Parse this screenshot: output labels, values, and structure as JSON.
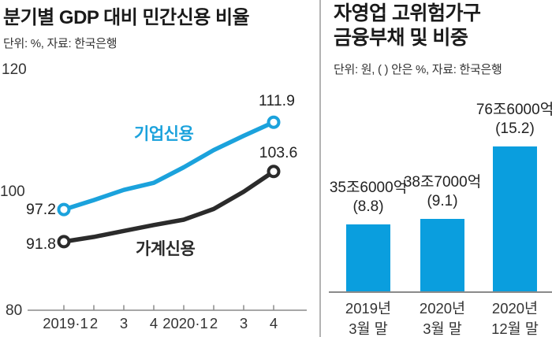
{
  "left_chart": {
    "title": "분기별 GDP 대비 민간신용 비율",
    "subtitle": "단위: %, 자료: 한국은행"
  },
  "right_chart": {
    "title_line1": "자영업 고위험가구",
    "title_line2": "금융부채 및 비중",
    "subtitle": "단위: 원, ( ) 안은 %, 자료: 한국은행"
  },
  "chart_data": [
    {
      "type": "line",
      "title": "분기별 GDP 대비 민간신용 비율",
      "unit": "%",
      "source": "한국은행",
      "x": [
        "2019·1",
        "2",
        "3",
        "4",
        "2020·1",
        "2",
        "3",
        "4"
      ],
      "y_ticks": [
        80,
        100,
        120
      ],
      "ylim": [
        80,
        120
      ],
      "grid": false,
      "labeled_points": "first and last of each series",
      "series": [
        {
          "name": "기업신용",
          "color": "#1ba2dc",
          "values": [
            97.2,
            98.8,
            100.5,
            101.7,
            104.3,
            107.2,
            109.6,
            111.9
          ],
          "start_label": "97.2",
          "end_label": "111.9"
        },
        {
          "name": "가계신용",
          "color": "#2b2b2b",
          "values": [
            91.8,
            92.6,
            93.6,
            94.6,
            95.5,
            97.3,
            100.2,
            103.6
          ],
          "start_label": "91.8",
          "end_label": "103.6"
        }
      ]
    },
    {
      "type": "bar",
      "title": "자영업 고위험가구 금융부채 및 비중",
      "unit": "원, ( ) 안은 %",
      "source": "한국은행",
      "bar_color": "#0a9ede",
      "categories_line1": [
        "2019년",
        "2020년",
        "2020년"
      ],
      "categories_line2": [
        "3월 말",
        "3월 말",
        "12월 말"
      ],
      "values_trillion_won": [
        35.6,
        38.7,
        76.6
      ],
      "share_pct": [
        8.8,
        9.1,
        15.2
      ],
      "amount_labels": [
        "35조6000억",
        "38조7000억",
        "76조6000억"
      ],
      "pct_labels": [
        "(8.8)",
        "(9.1)",
        "(15.2)"
      ]
    }
  ],
  "style": {
    "axis_color": "#8a8a8a"
  }
}
